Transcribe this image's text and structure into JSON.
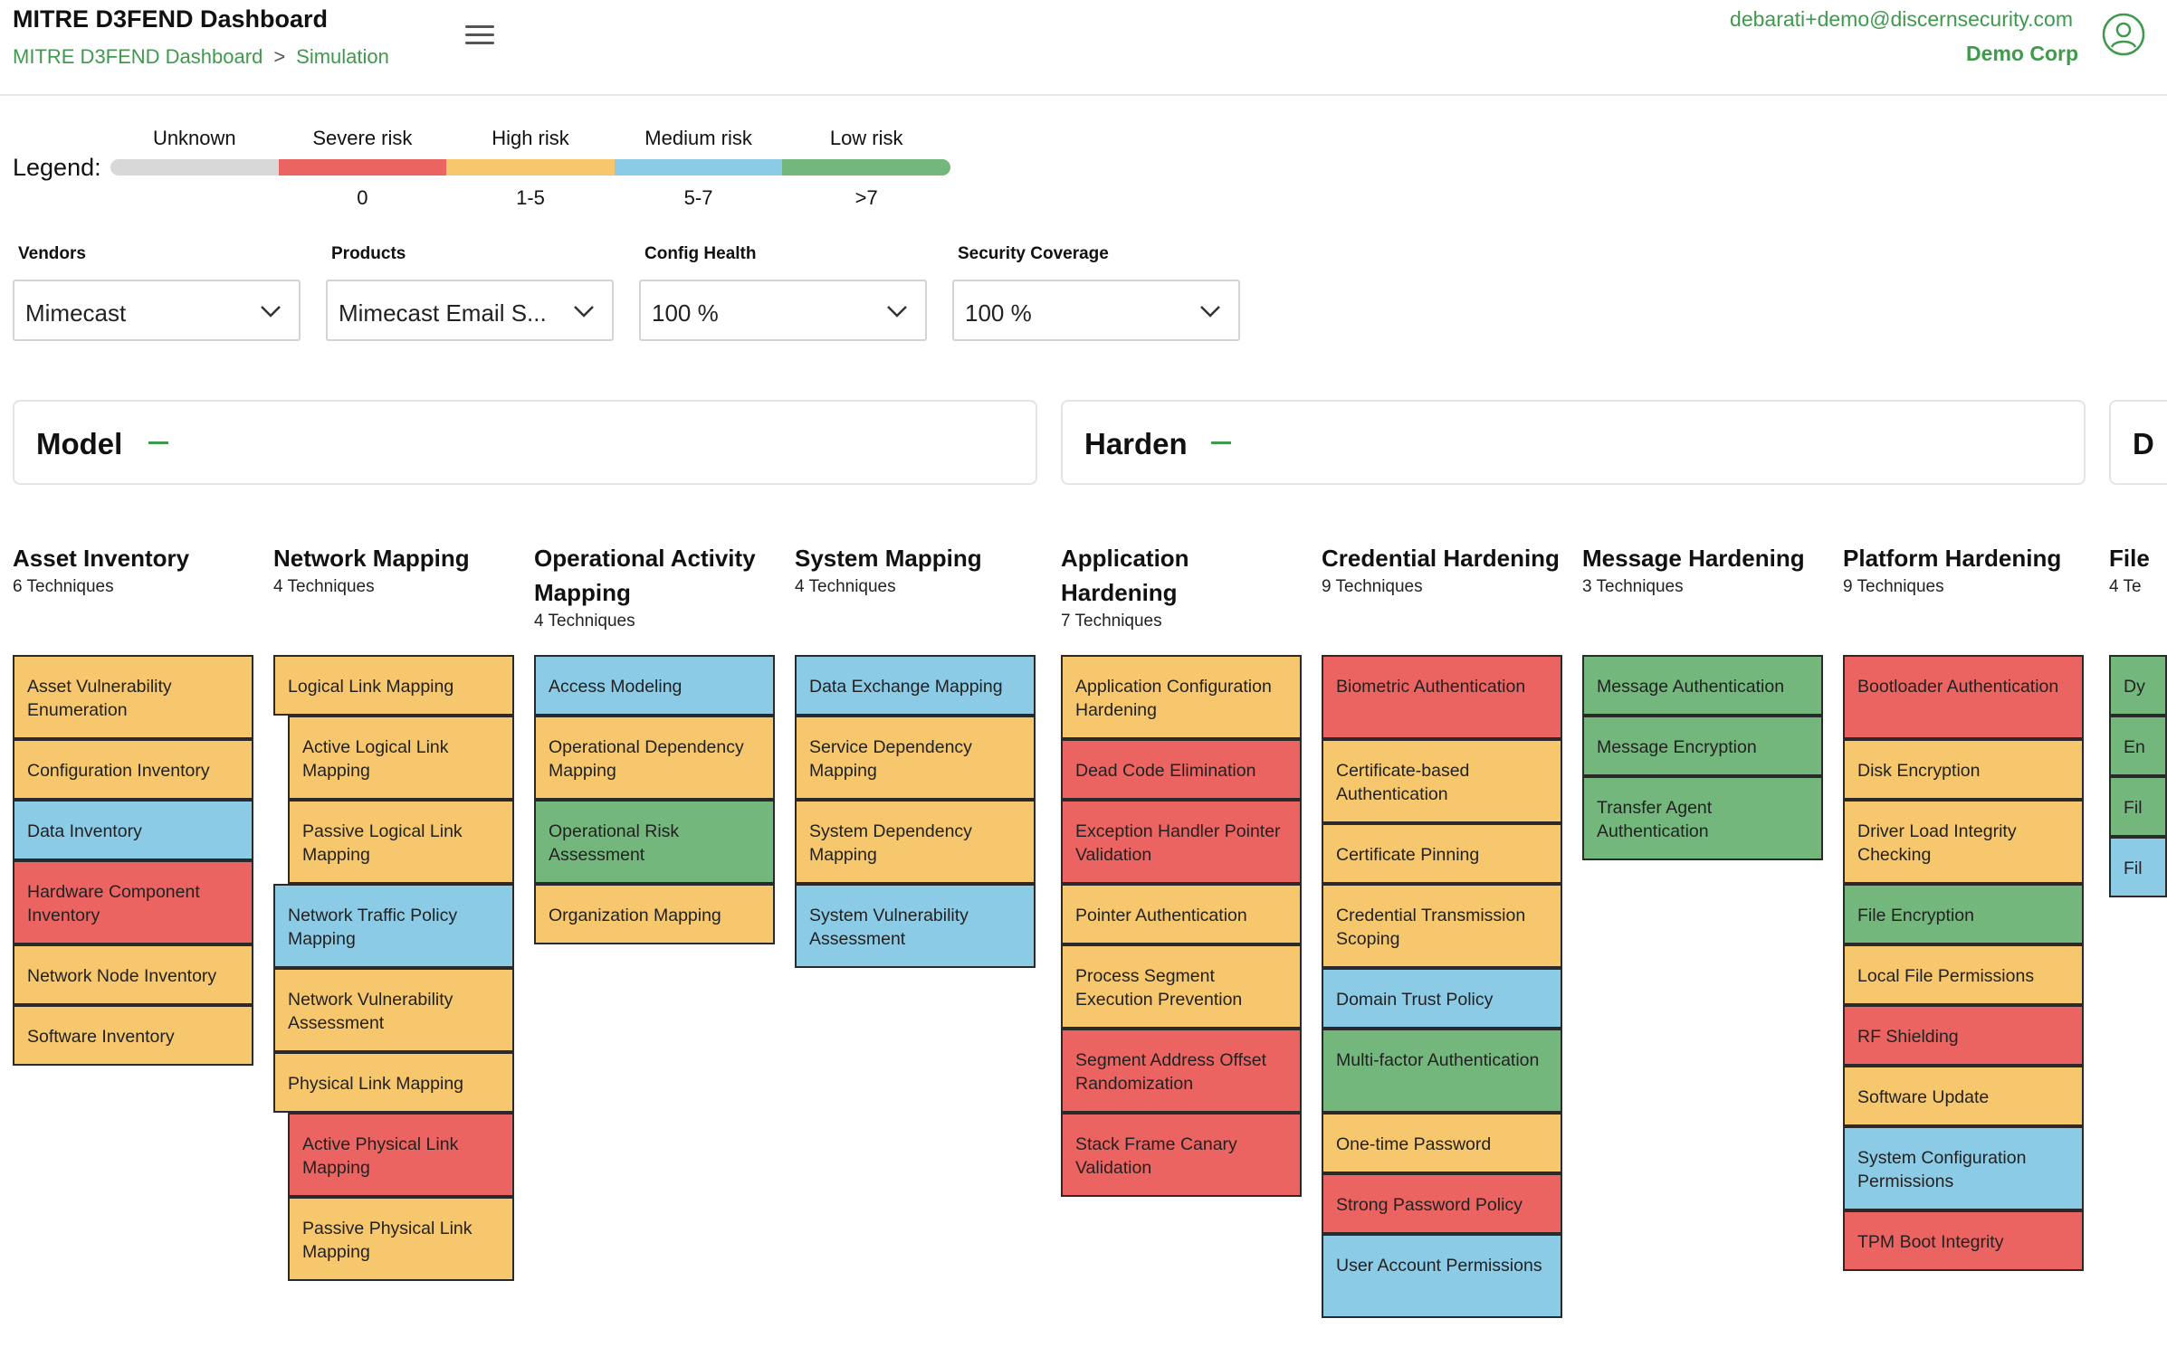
{
  "header": {
    "title": "MITRE D3FEND Dashboard",
    "breadcrumb": {
      "root": "MITRE D3FEND Dashboard",
      "separator": ">",
      "current": "Simulation"
    },
    "user_email": "debarati+demo@discernsecurity.com",
    "organization": "Demo Corp",
    "icons": {
      "menu": "hamburger-menu-icon",
      "account": "user-account-icon"
    }
  },
  "legend": {
    "label": "Legend:",
    "items": [
      {
        "name": "Unknown",
        "range": "",
        "color": "#d8d8d8"
      },
      {
        "name": "Severe risk",
        "range": "0",
        "color": "#ec6461"
      },
      {
        "name": "High risk",
        "range": "1-5",
        "color": "#f6c76c"
      },
      {
        "name": "Medium risk",
        "range": "5-7",
        "color": "#8ccbe6"
      },
      {
        "name": "Low risk",
        "range": ">7",
        "color": "#74b77c"
      }
    ]
  },
  "filters": [
    {
      "label": "Vendors",
      "value": "Mimecast"
    },
    {
      "label": "Products",
      "value": "Mimecast Email S..."
    },
    {
      "label": "Config Health",
      "value": "100 %"
    },
    {
      "label": "Security Coverage",
      "value": "100 %"
    }
  ],
  "phases": [
    {
      "name": "Model"
    },
    {
      "name": "Harden"
    },
    {
      "name": "D"
    }
  ],
  "tactics": [
    {
      "name": "Asset Inventory",
      "count": "6 Techniques",
      "techniques": [
        {
          "label": "Asset Vulnerability Enumeration",
          "risk": "yellow"
        },
        {
          "label": "Configuration Inventory",
          "risk": "yellow"
        },
        {
          "label": "Data Inventory",
          "risk": "blue"
        },
        {
          "label": "Hardware Component Inventory",
          "risk": "red"
        },
        {
          "label": "Network Node Inventory",
          "risk": "yellow"
        },
        {
          "label": "Software Inventory",
          "risk": "yellow"
        }
      ]
    },
    {
      "name": "Network Mapping",
      "count": "4 Techniques",
      "techniques": [
        {
          "label": "Logical Link Mapping",
          "risk": "yellow"
        },
        {
          "label": "Active Logical Link Mapping",
          "risk": "yellow",
          "sub": true
        },
        {
          "label": "Passive Logical Link Mapping",
          "risk": "yellow",
          "sub": true
        },
        {
          "label": "Network Traffic Policy Mapping",
          "risk": "blue"
        },
        {
          "label": "Network Vulnerability Assessment",
          "risk": "yellow"
        },
        {
          "label": "Physical Link Mapping",
          "risk": "yellow"
        },
        {
          "label": "Active Physical Link Mapping",
          "risk": "red",
          "sub": true
        },
        {
          "label": "Passive Physical Link Mapping",
          "risk": "yellow",
          "sub": true
        }
      ]
    },
    {
      "name": "Operational Activity Mapping",
      "count": "4 Techniques",
      "techniques": [
        {
          "label": "Access Modeling",
          "risk": "blue"
        },
        {
          "label": "Operational Dependency Mapping",
          "risk": "yellow"
        },
        {
          "label": "Operational Risk Assessment",
          "risk": "green"
        },
        {
          "label": "Organization Mapping",
          "risk": "yellow"
        }
      ]
    },
    {
      "name": "System Mapping",
      "count": "4 Techniques",
      "techniques": [
        {
          "label": "Data Exchange Mapping",
          "risk": "blue"
        },
        {
          "label": "Service Dependency Mapping",
          "risk": "yellow"
        },
        {
          "label": "System Dependency Mapping",
          "risk": "yellow"
        },
        {
          "label": "System Vulnerability Assessment",
          "risk": "blue"
        }
      ]
    },
    {
      "name": "Application Hardening",
      "count": "7 Techniques",
      "techniques": [
        {
          "label": "Application Configuration Hardening",
          "risk": "yellow"
        },
        {
          "label": "Dead Code Elimination",
          "risk": "red"
        },
        {
          "label": "Exception Handler Pointer Validation",
          "risk": "red"
        },
        {
          "label": "Pointer Authentication",
          "risk": "yellow"
        },
        {
          "label": "Process Segment Execution Prevention",
          "risk": "yellow"
        },
        {
          "label": "Segment Address Offset Randomization",
          "risk": "red"
        },
        {
          "label": "Stack Frame Canary Validation",
          "risk": "red"
        }
      ]
    },
    {
      "name": "Credential Hardening",
      "count": "9 Techniques",
      "techniques": [
        {
          "label": "Biometric Authentication",
          "risk": "red"
        },
        {
          "label": "Certificate-based Authentication",
          "risk": "yellow"
        },
        {
          "label": "Certificate Pinning",
          "risk": "yellow"
        },
        {
          "label": "Credential Transmission Scoping",
          "risk": "yellow"
        },
        {
          "label": "Domain Trust Policy",
          "risk": "blue"
        },
        {
          "label": "Multi-factor Authentication",
          "risk": "green"
        },
        {
          "label": "One-time Password",
          "risk": "yellow"
        },
        {
          "label": "Strong Password Policy",
          "risk": "red"
        },
        {
          "label": "User Account Permissions",
          "risk": "blue"
        }
      ]
    },
    {
      "name": "Message Hardening",
      "count": "3 Techniques",
      "techniques": [
        {
          "label": "Message Authentication",
          "risk": "green"
        },
        {
          "label": "Message Encryption",
          "risk": "green"
        },
        {
          "label": "Transfer Agent Authentication",
          "risk": "green"
        }
      ]
    },
    {
      "name": "Platform Hardening",
      "count": "9 Techniques",
      "techniques": [
        {
          "label": "Bootloader Authentication",
          "risk": "red"
        },
        {
          "label": "Disk Encryption",
          "risk": "yellow"
        },
        {
          "label": "Driver Load Integrity Checking",
          "risk": "yellow"
        },
        {
          "label": "File Encryption",
          "risk": "green"
        },
        {
          "label": "Local File Permissions",
          "risk": "yellow"
        },
        {
          "label": "RF Shielding",
          "risk": "red"
        },
        {
          "label": "Software Update",
          "risk": "yellow"
        },
        {
          "label": "System Configuration Permissions",
          "risk": "blue"
        },
        {
          "label": "TPM Boot Integrity",
          "risk": "red"
        }
      ]
    },
    {
      "name": "File",
      "count": "4 Te",
      "techniques": [
        {
          "label": "Dy",
          "risk": "green"
        },
        {
          "label": "En",
          "risk": "green"
        },
        {
          "label": "Fil",
          "risk": "green"
        },
        {
          "label": "Fil",
          "risk": "blue"
        }
      ]
    }
  ]
}
